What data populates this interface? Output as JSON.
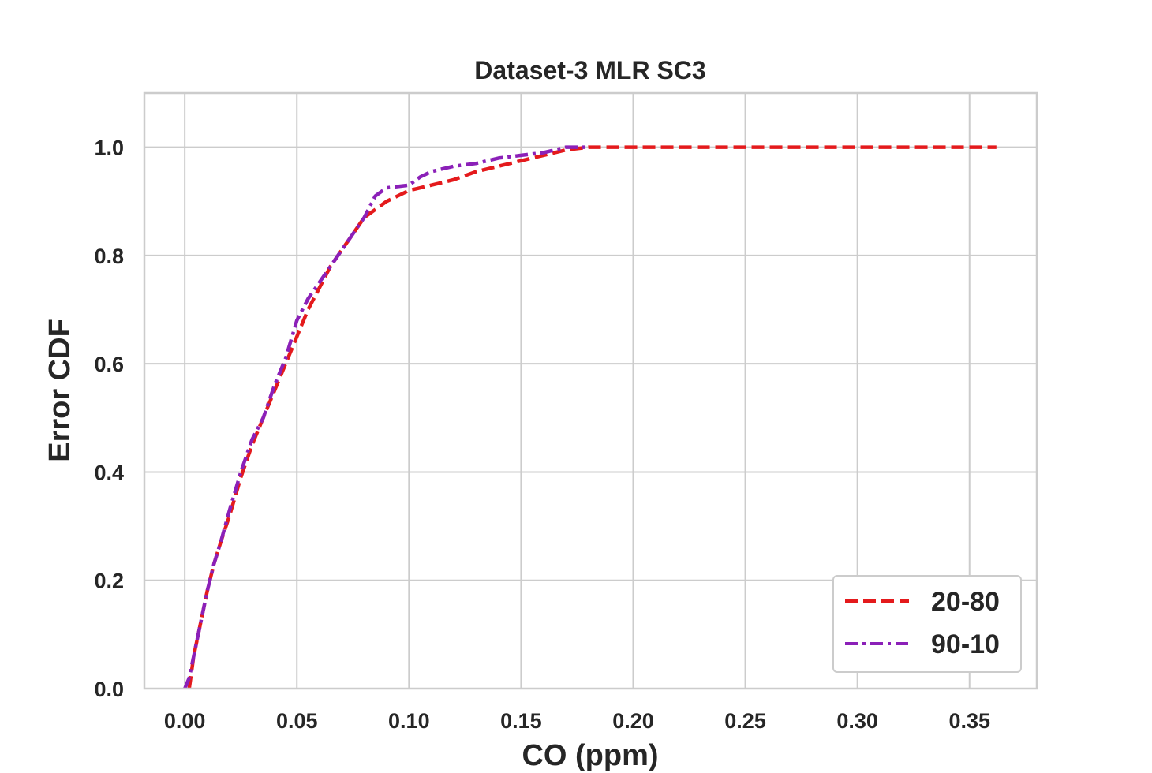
{
  "chart_data": {
    "type": "line",
    "title": "Dataset-3 MLR SC3",
    "xlabel": "CO (ppm)",
    "ylabel": "Error CDF",
    "xlim": [
      -0.018,
      0.38
    ],
    "ylim": [
      0.0,
      1.1
    ],
    "xticks": [
      0.0,
      0.05,
      0.1,
      0.15,
      0.2,
      0.25,
      0.3,
      0.35
    ],
    "xtick_labels": [
      "0.00",
      "0.05",
      "0.10",
      "0.15",
      "0.20",
      "0.25",
      "0.30",
      "0.35"
    ],
    "yticks": [
      0.0,
      0.2,
      0.4,
      0.6,
      0.8,
      1.0
    ],
    "ytick_labels": [
      "0.0",
      "0.2",
      "0.4",
      "0.6",
      "0.8",
      "1.0"
    ],
    "grid": true,
    "legend_position": "lower-right",
    "series": [
      {
        "name": "20-80",
        "color": "#e41a1c",
        "style": "dashed",
        "x": [
          0.002,
          0.004,
          0.006,
          0.008,
          0.01,
          0.013,
          0.016,
          0.02,
          0.025,
          0.03,
          0.035,
          0.04,
          0.045,
          0.05,
          0.055,
          0.06,
          0.065,
          0.07,
          0.075,
          0.08,
          0.085,
          0.09,
          0.095,
          0.1,
          0.11,
          0.12,
          0.13,
          0.14,
          0.15,
          0.16,
          0.17,
          0.18,
          0.2,
          0.25,
          0.3,
          0.362
        ],
        "y": [
          0.0,
          0.06,
          0.1,
          0.14,
          0.18,
          0.23,
          0.27,
          0.32,
          0.39,
          0.45,
          0.5,
          0.55,
          0.6,
          0.65,
          0.7,
          0.74,
          0.78,
          0.81,
          0.84,
          0.87,
          0.885,
          0.9,
          0.91,
          0.92,
          0.93,
          0.94,
          0.955,
          0.965,
          0.975,
          0.985,
          0.995,
          1.0,
          1.0,
          1.0,
          1.0,
          1.0
        ]
      },
      {
        "name": "90-10",
        "color": "#8b20b8",
        "style": "dashdot",
        "x": [
          0.0,
          0.002,
          0.004,
          0.006,
          0.008,
          0.01,
          0.013,
          0.016,
          0.02,
          0.025,
          0.03,
          0.035,
          0.04,
          0.045,
          0.05,
          0.055,
          0.06,
          0.065,
          0.07,
          0.075,
          0.08,
          0.085,
          0.09,
          0.1,
          0.105,
          0.11,
          0.12,
          0.13,
          0.14,
          0.15,
          0.16,
          0.165,
          0.17,
          0.18
        ],
        "y": [
          0.0,
          0.02,
          0.06,
          0.1,
          0.14,
          0.18,
          0.23,
          0.27,
          0.33,
          0.4,
          0.46,
          0.5,
          0.56,
          0.61,
          0.68,
          0.72,
          0.75,
          0.78,
          0.81,
          0.84,
          0.87,
          0.91,
          0.925,
          0.93,
          0.945,
          0.955,
          0.965,
          0.97,
          0.98,
          0.985,
          0.99,
          0.995,
          1.0,
          1.0
        ]
      }
    ]
  }
}
